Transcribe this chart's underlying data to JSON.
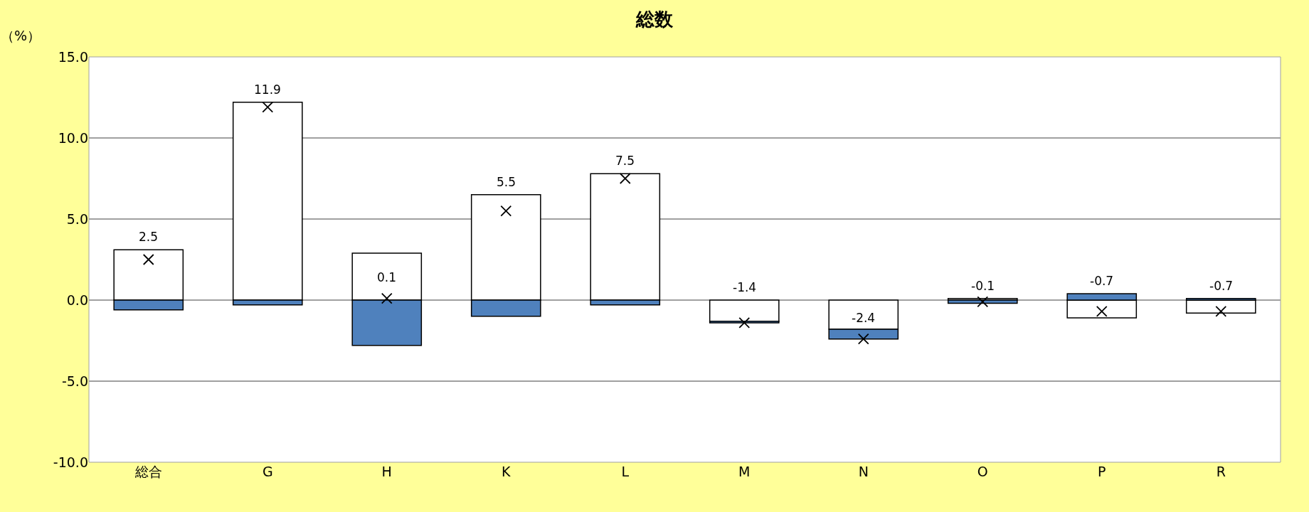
{
  "chart_data": {
    "type": "bar",
    "title": "総数",
    "ylabel": "（%）",
    "stacked": true,
    "categories": [
      "総合",
      "G",
      "H",
      "K",
      "L",
      "M",
      "N",
      "O",
      "P",
      "R"
    ],
    "series": [
      {
        "color": "#ffffff",
        "values": [
          3.1,
          12.2,
          2.9,
          6.5,
          7.8,
          -1.3,
          -1.8,
          0.1,
          -1.1,
          -0.8
        ]
      },
      {
        "color": "#4f81bd",
        "values": [
          -0.6,
          -0.3,
          -2.8,
          -1.0,
          -0.3,
          -0.1,
          -0.6,
          -0.2,
          0.4,
          0.1
        ]
      },
      {
        "type": "scatter",
        "marker": "cross",
        "color": "#000000",
        "values": [
          2.5,
          11.9,
          0.1,
          5.5,
          7.5,
          -1.4,
          -2.4,
          -0.1,
          -0.7,
          -0.7
        ],
        "value_labels": [
          "2.5",
          "11.9",
          "0.1",
          "5.5",
          "7.5",
          "-1.4",
          "-2.4",
          "-0.1",
          "-0.7",
          "-0.7"
        ]
      }
    ],
    "ylim": [
      -10,
      15
    ],
    "yticks": [
      {
        "value": -10,
        "label": "-10.0"
      },
      {
        "value": -5,
        "label": "-5.0"
      },
      {
        "value": 0,
        "label": "0.0"
      },
      {
        "value": 5,
        "label": "5.0"
      },
      {
        "value": 10,
        "label": "10.0"
      },
      {
        "value": 15,
        "label": "15.0"
      }
    ],
    "grid": "y"
  }
}
